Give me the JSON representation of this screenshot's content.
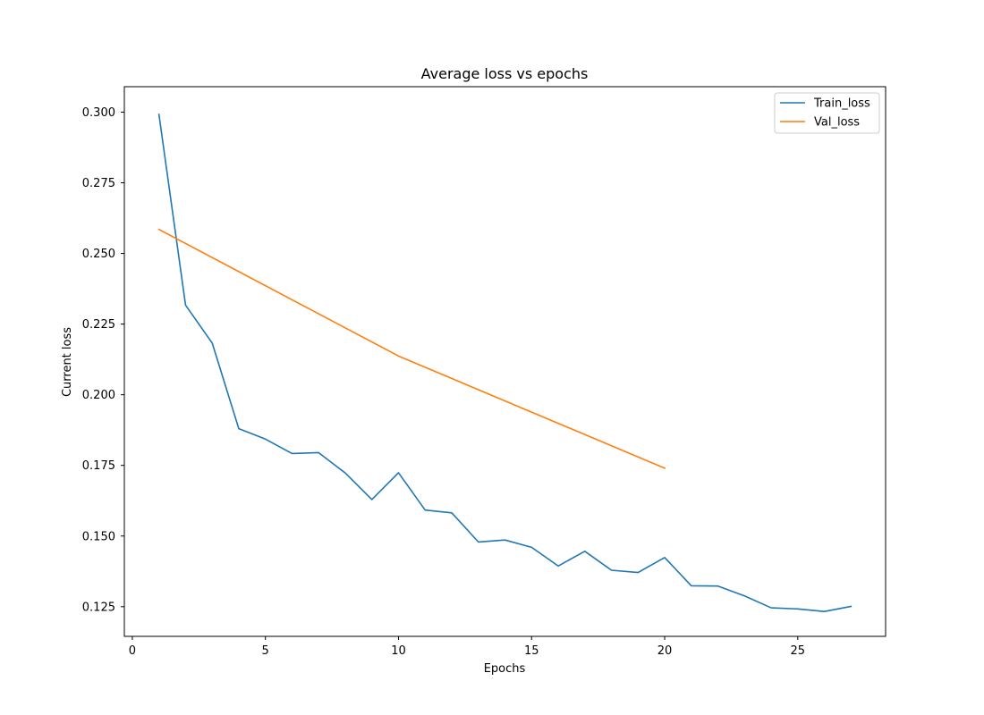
{
  "chart_data": {
    "type": "line",
    "title": "Average loss vs epochs",
    "xlabel": "Epochs",
    "ylabel": "Current loss",
    "xlim": [
      -0.3,
      28.3
    ],
    "ylim": [
      0.1145,
      0.309
    ],
    "xticks": [
      0,
      5,
      10,
      15,
      20,
      25
    ],
    "yticks": [
      0.125,
      0.15,
      0.175,
      0.2,
      0.225,
      0.25,
      0.275,
      0.3
    ],
    "ytick_labels": [
      "0.125",
      "0.150",
      "0.175",
      "0.200",
      "0.225",
      "0.250",
      "0.275",
      "0.300"
    ],
    "grid": false,
    "legend_position": "top-right",
    "series": [
      {
        "name": "Train_loss",
        "color": "#1f77b4",
        "x": [
          1,
          2,
          3,
          4,
          5,
          6,
          7,
          8,
          9,
          10,
          11,
          12,
          13,
          14,
          15,
          16,
          17,
          18,
          19,
          20,
          21,
          22,
          23,
          24,
          25,
          26,
          27
        ],
        "y": [
          0.2992,
          0.2317,
          0.2183,
          0.188,
          0.1843,
          0.1792,
          0.1795,
          0.1723,
          0.1629,
          0.1724,
          0.1592,
          0.1582,
          0.1479,
          0.1486,
          0.146,
          0.1394,
          0.1446,
          0.1379,
          0.1371,
          0.1424,
          0.1324,
          0.1323,
          0.1288,
          0.1246,
          0.1242,
          0.1233,
          0.1251
        ]
      },
      {
        "name": "Val_loss",
        "color": "#ff7f0e",
        "x": [
          1,
          10,
          20
        ],
        "y": [
          0.2585,
          0.2137,
          0.174
        ]
      }
    ]
  }
}
